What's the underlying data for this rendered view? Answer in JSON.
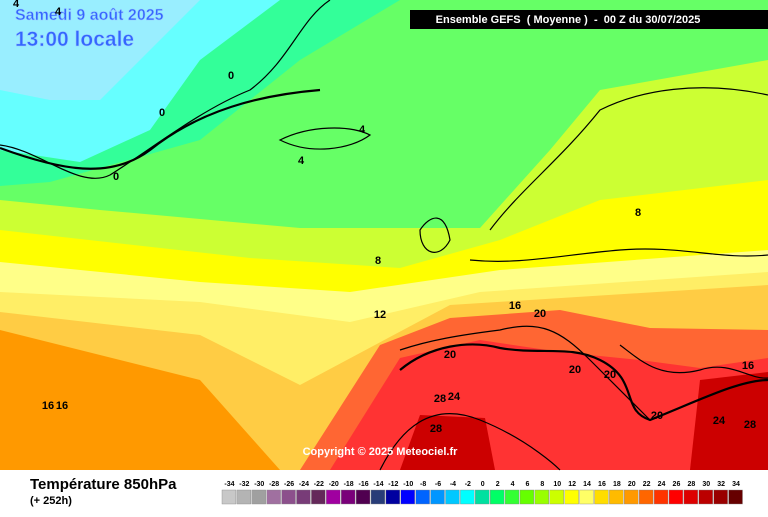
{
  "header": {
    "date": "Samedi 9 août 2025",
    "time": "13:00 locale",
    "run": "Ensemble GEFS  ( Moyenne )  -  00 Z du 30/07/2025"
  },
  "copyright": "Copyright © 2025 Meteociel.fr",
  "footer": {
    "title": "Température 850hPa",
    "lead": "(+ 252h)"
  },
  "map_labels": [
    4,
    4,
    0,
    0,
    0,
    4,
    4,
    8,
    8,
    12,
    16,
    20,
    20,
    20,
    20,
    16,
    28,
    24,
    20,
    24,
    28,
    28,
    16,
    16
  ],
  "scale": {
    "values": [
      -34,
      -32,
      -30,
      -28,
      -26,
      -24,
      -22,
      -20,
      -18,
      -16,
      -14,
      -12,
      -10,
      -8,
      -6,
      -4,
      -2,
      0,
      2,
      4,
      6,
      8,
      10,
      12,
      14,
      16,
      18,
      20,
      22,
      24,
      26,
      28,
      30,
      32,
      34
    ],
    "colors": [
      "#c8c8c8",
      "#b4b4b4",
      "#a0a0a0",
      "#a070a0",
      "#8c508c",
      "#783c78",
      "#64285a",
      "#a000a0",
      "#7a007a",
      "#500050",
      "#283c78",
      "#0000a0",
      "#0000ff",
      "#0064ff",
      "#0096ff",
      "#00c8ff",
      "#00ffff",
      "#00e0a0",
      "#00ff66",
      "#33ff33",
      "#66ff00",
      "#99ff00",
      "#ccff00",
      "#ffff00",
      "#ffff66",
      "#ffdd00",
      "#ffbb00",
      "#ff9900",
      "#ff6600",
      "#ff3300",
      "#ff0000",
      "#dd0000",
      "#bb0000",
      "#990000",
      "#660000"
    ]
  }
}
